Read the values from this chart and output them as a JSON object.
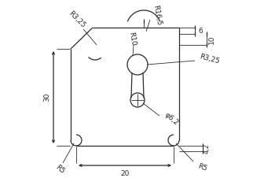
{
  "bg_color": "#ffffff",
  "line_color": "#2a2a2a",
  "figsize": [
    3.5,
    2.45
  ],
  "dpi": 100,
  "annotations": {
    "R16_5": "R16,5",
    "R3_25_left": "R3,25",
    "R10": "R10",
    "R3_25_right": "R3,25",
    "phi6_2": "φ6,2",
    "dim_6": "6",
    "dim_10": "10",
    "dim_30": "30",
    "R5_left": "R5",
    "R5_right": "R5",
    "dim_20": "20",
    "dim_4_2": "4,2"
  }
}
